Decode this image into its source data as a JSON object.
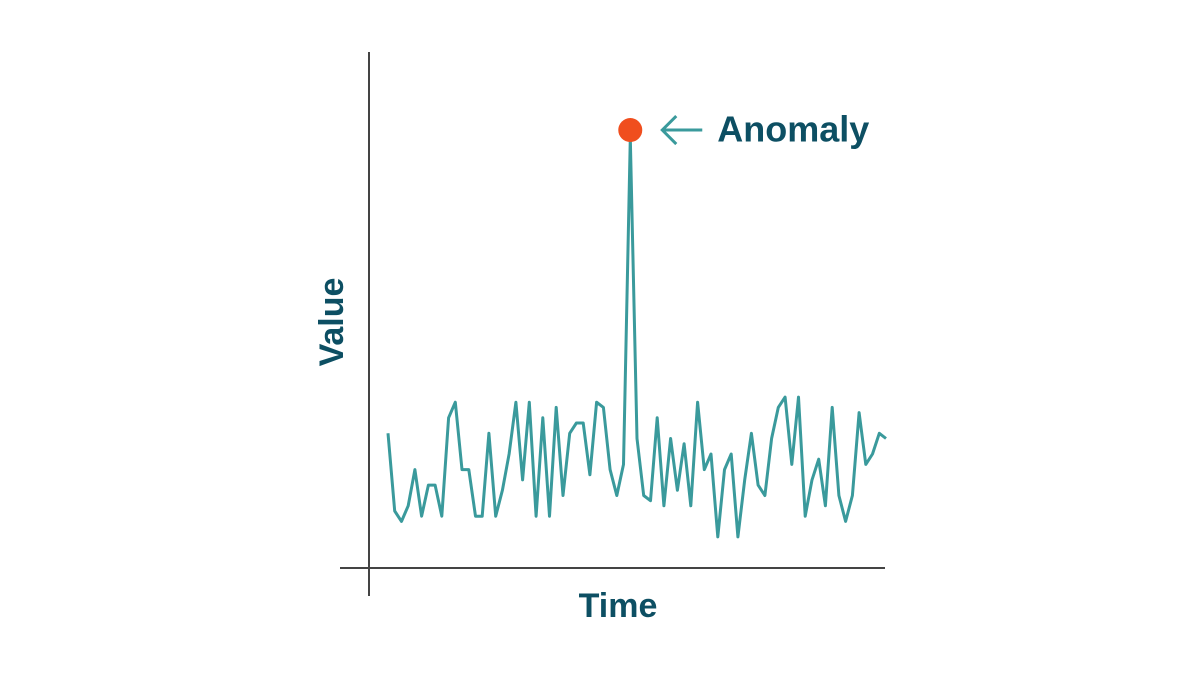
{
  "chart_data": {
    "type": "line",
    "x_label": "Time",
    "y_label": "Value",
    "x": [
      0,
      1,
      2,
      3,
      4,
      5,
      6,
      7,
      8,
      9,
      10,
      11,
      12,
      13,
      14,
      15,
      16,
      17,
      18,
      19,
      20,
      21,
      22,
      23,
      24,
      25,
      26,
      27,
      28,
      29,
      30,
      31,
      32,
      33,
      34,
      35,
      36,
      37,
      38,
      39,
      40,
      41,
      42,
      43,
      44,
      45,
      46,
      47,
      48,
      49,
      50,
      51,
      52,
      53,
      54,
      55,
      56,
      57,
      58,
      59,
      60,
      61,
      62,
      63,
      64,
      65,
      66,
      67,
      68,
      69,
      70,
      71,
      72,
      73,
      74
    ],
    "series": [
      {
        "color": "#3a9a9c",
        "values": [
          26,
          11,
          9,
          12,
          19,
          10,
          16,
          16,
          10,
          29,
          32,
          19,
          19,
          10,
          10,
          26,
          10,
          15,
          22,
          32,
          17,
          32,
          10,
          29,
          10,
          31,
          14,
          26,
          28,
          28,
          18,
          32,
          31,
          19,
          14,
          20,
          83,
          25,
          14,
          13,
          29,
          12,
          25,
          15,
          24,
          12,
          32,
          19,
          22,
          6,
          19,
          22,
          6,
          17,
          26,
          16,
          14,
          25,
          31,
          33,
          20,
          33,
          10,
          17,
          21,
          12,
          31,
          14,
          9,
          14,
          30,
          20,
          22,
          26,
          25
        ]
      }
    ],
    "xlim": [
      0,
      74
    ],
    "ylim": [
      0,
      100
    ],
    "annotation": {
      "label": "Anomaly",
      "x": 36,
      "color": "#f04e1e"
    }
  }
}
